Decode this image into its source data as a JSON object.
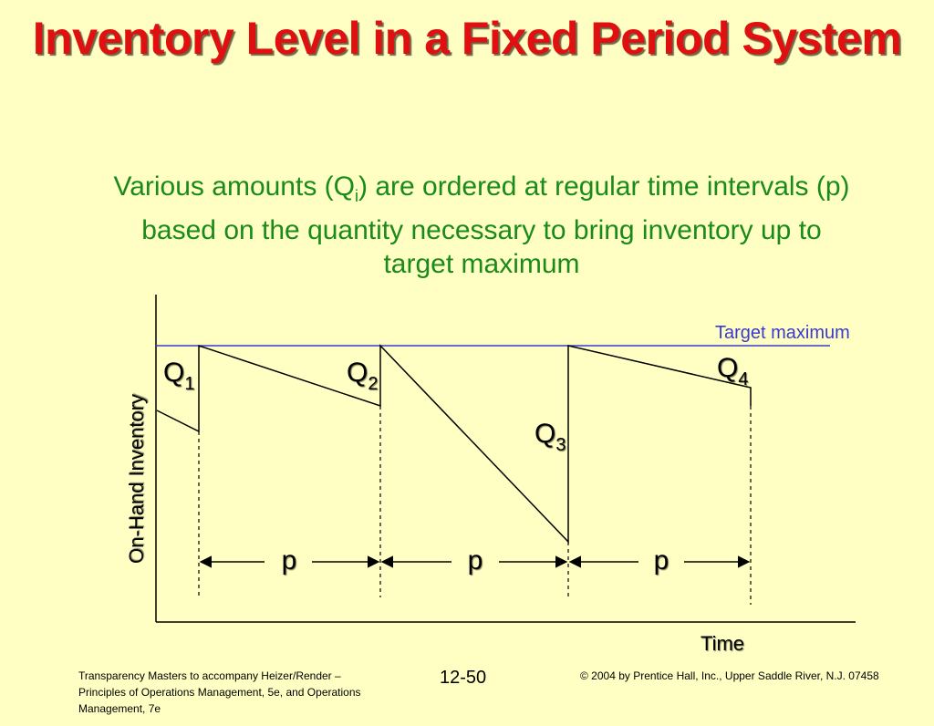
{
  "title": "Inventory Level in a Fixed Period System",
  "subtitle": {
    "part1": "Various amounts (Q",
    "sub": "i",
    "part2": ") are ordered at regular time intervals (p) based on the quantity necessary to bring inventory up to target maximum"
  },
  "diagram": {
    "target_label": "Target maximum",
    "y_axis_label": "On-Hand Inventory",
    "x_axis_label": "Time",
    "order_labels": [
      {
        "main": "Q",
        "sub": "1"
      },
      {
        "main": "Q",
        "sub": "2"
      },
      {
        "main": "Q",
        "sub": "3"
      },
      {
        "main": "Q",
        "sub": "4"
      }
    ],
    "period_labels": [
      "p",
      "p",
      "p"
    ],
    "colors": {
      "target_line": "#3A3ACF",
      "text_shadow": "#7a7a5a"
    }
  },
  "footer": {
    "left": "Transparency Masters to accompany Heizer/Render – Principles of Operations Management, 5e, and Operations Management, 7e",
    "center": "12-50",
    "right": "© 2004 by Prentice Hall, Inc.,  Upper Saddle River, N.J. 07458"
  }
}
